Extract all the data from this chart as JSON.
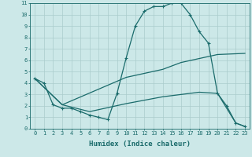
{
  "xlabel": "Humidex (Indice chaleur)",
  "bg_color": "#cce8e8",
  "grid_color": "#aacccc",
  "line_color": "#1a6b6b",
  "xlim": [
    -0.5,
    23.5
  ],
  "ylim": [
    0,
    11
  ],
  "xticks": [
    0,
    1,
    2,
    3,
    4,
    5,
    6,
    7,
    8,
    9,
    10,
    11,
    12,
    13,
    14,
    15,
    16,
    17,
    18,
    19,
    20,
    21,
    22,
    23
  ],
  "yticks": [
    0,
    1,
    2,
    3,
    4,
    5,
    6,
    7,
    8,
    9,
    10,
    11
  ],
  "line1_x": [
    0,
    1,
    2,
    3,
    4,
    5,
    6,
    7,
    8,
    9,
    10,
    11,
    12,
    13,
    14,
    15,
    16,
    17,
    18,
    19,
    20,
    21,
    22,
    23
  ],
  "line1_y": [
    4.4,
    4.0,
    2.1,
    1.8,
    1.8,
    1.5,
    1.2,
    1.0,
    0.8,
    3.1,
    6.2,
    9.0,
    10.3,
    10.7,
    10.7,
    11.0,
    11.0,
    10.0,
    8.5,
    7.5,
    3.1,
    2.0,
    0.5,
    0.2
  ],
  "line2_x": [
    0,
    3,
    10,
    14,
    16,
    20,
    23
  ],
  "line2_y": [
    4.4,
    2.1,
    4.5,
    5.2,
    5.8,
    6.5,
    6.6
  ],
  "line3_x": [
    0,
    3,
    6,
    10,
    14,
    16,
    18,
    20,
    22,
    23
  ],
  "line3_y": [
    4.4,
    2.1,
    1.5,
    2.2,
    2.8,
    3.0,
    3.2,
    3.1,
    0.5,
    0.2
  ],
  "tick_fontsize": 5.0,
  "xlabel_fontsize": 6.5
}
